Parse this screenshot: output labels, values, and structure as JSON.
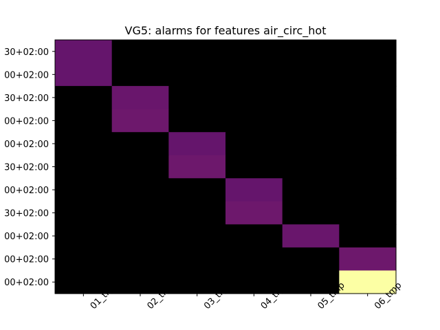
{
  "chart_data": {
    "type": "heatmap",
    "title": "VG5: alarms for features air_circ_hot",
    "xlabel": "",
    "ylabel": "",
    "x_categories": [
      "01_tmp",
      "02_tmp",
      "03_tmp",
      "04_tmp",
      "05_tmp",
      "06_tmp"
    ],
    "y_categories": [
      "30+02:00",
      "00+02:00",
      "30+02:00",
      "00+02:00",
      "00+02:00",
      "30+02:00",
      "00+02:00",
      "30+02:00",
      "00+02:00",
      "00+02:00",
      "00+02:00"
    ],
    "cells": [
      [
        0.29,
        0,
        0,
        0,
        0,
        0
      ],
      [
        0.29,
        0,
        0,
        0,
        0,
        0
      ],
      [
        0,
        0.3,
        0,
        0,
        0,
        0
      ],
      [
        0,
        0.31,
        0,
        0,
        0,
        0
      ],
      [
        0,
        0,
        0.29,
        0,
        0,
        0
      ],
      [
        0,
        0,
        0.31,
        0,
        0,
        0
      ],
      [
        0,
        0,
        0,
        0.29,
        0,
        0
      ],
      [
        0,
        0,
        0,
        0.31,
        0,
        0
      ],
      [
        0,
        0,
        0,
        0,
        0.3,
        0
      ],
      [
        0,
        0,
        0,
        0,
        0,
        0.31
      ],
      [
        0,
        0,
        0,
        0,
        0,
        1.0
      ]
    ],
    "colormap": "inferno",
    "colorbar": false
  }
}
